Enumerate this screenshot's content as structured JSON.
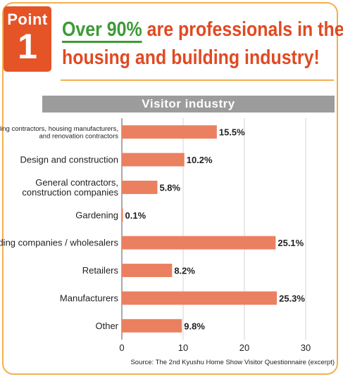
{
  "badge": {
    "word": "Point",
    "number": "1"
  },
  "headline": {
    "accent": "Over 90%",
    "rest1": " are professionals in the",
    "line2": "housing and building industry!"
  },
  "chart_data": {
    "type": "bar",
    "orientation": "horizontal",
    "title": "Visitor industry",
    "categories": [
      [
        "Building contractors, housing manufacturers,",
        "and renovation contractors"
      ],
      [
        "Design and construction"
      ],
      [
        "General contractors,",
        "construction companies"
      ],
      [
        "Gardening"
      ],
      [
        "Trading companies / wholesalers"
      ],
      [
        "Retailers"
      ],
      [
        "Manufacturers"
      ],
      [
        "Other"
      ]
    ],
    "values": [
      15.5,
      10.2,
      5.8,
      0.1,
      25.1,
      8.2,
      25.3,
      9.8
    ],
    "value_labels": [
      "15.5%",
      "10.2%",
      "5.8%",
      "0.1%",
      "25.1%",
      "8.2%",
      "25.3%",
      "9.8%"
    ],
    "xlim": [
      0,
      30
    ],
    "xticks": [
      0,
      10,
      20,
      30
    ],
    "grid": true,
    "bar_color": "#ea8060"
  },
  "source": "Source: The 2nd Kyushu Home Show Visitor Questionnaire (excerpt)"
}
